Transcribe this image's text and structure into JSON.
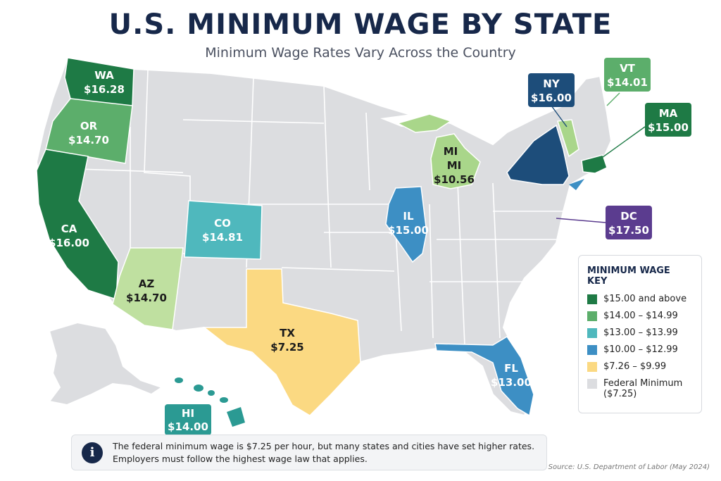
{
  "title": "U.S. MINIMUM WAGE BY STATE",
  "subtitle": "Minimum Wage Rates Vary Across the Country",
  "colors": {
    "tier_15_plus": "#1e7a45",
    "tier_14": "#5cae6b",
    "tier_13": "#4fb8bd",
    "tier_10": "#3d8fc4",
    "tier_726": "#fbd982",
    "federal": "#dcdde0",
    "light_green": "#a9d68a",
    "navy_label": "#1d4d7a",
    "dc_purple": "#5b3c8f",
    "title": "#17284a"
  },
  "states": {
    "wa": {
      "abbr": "WA",
      "wage": "$16.28"
    },
    "or": {
      "abbr": "OR",
      "wage": "$14.70"
    },
    "ca": {
      "abbr": "CA",
      "wage": "$16.00"
    },
    "az": {
      "abbr": "AZ",
      "wage": "$14.70"
    },
    "co": {
      "abbr": "CO",
      "wage": "$14.81"
    },
    "tx": {
      "abbr": "TX",
      "wage": "$7.25"
    },
    "il": {
      "abbr": "IL",
      "wage": "$15.00"
    },
    "mi": {
      "abbr": "MI",
      "abbr2": "MI",
      "wage": "$10.56"
    },
    "fl": {
      "abbr": "FL",
      "wage": "$13.00"
    },
    "ny": {
      "abbr": "NY",
      "wage": "$16.00"
    },
    "vt": {
      "abbr": "VT",
      "wage": "$14.01"
    },
    "ma": {
      "abbr": "MA",
      "wage": "$15.00"
    },
    "dc": {
      "abbr": "DC",
      "wage": "$17.50"
    },
    "hi": {
      "abbr": "HI",
      "wage": "$14.00"
    }
  },
  "legend": {
    "title": "MINIMUM WAGE KEY",
    "items": [
      {
        "label": "$15.00 and above",
        "color": "#1e7a45"
      },
      {
        "label": "$14.00 – $14.99",
        "color": "#5cae6b"
      },
      {
        "label": "$13.00 – $13.99",
        "color": "#4fb8bd"
      },
      {
        "label": "$10.00 – $12.99",
        "color": "#3d8fc4"
      },
      {
        "label": "$7.26 – $9.99",
        "color": "#fbd982"
      },
      {
        "label": "Federal Minimum\n($7.25)",
        "color": "#dcdde0"
      }
    ]
  },
  "info": {
    "icon": "info-icon",
    "text": "The federal minimum wage is $7.25 per hour, but many states and cities have set higher rates. Employers must follow the highest wage law that applies."
  },
  "source": "Source: U.S. Department of Labor (May 2024)"
}
